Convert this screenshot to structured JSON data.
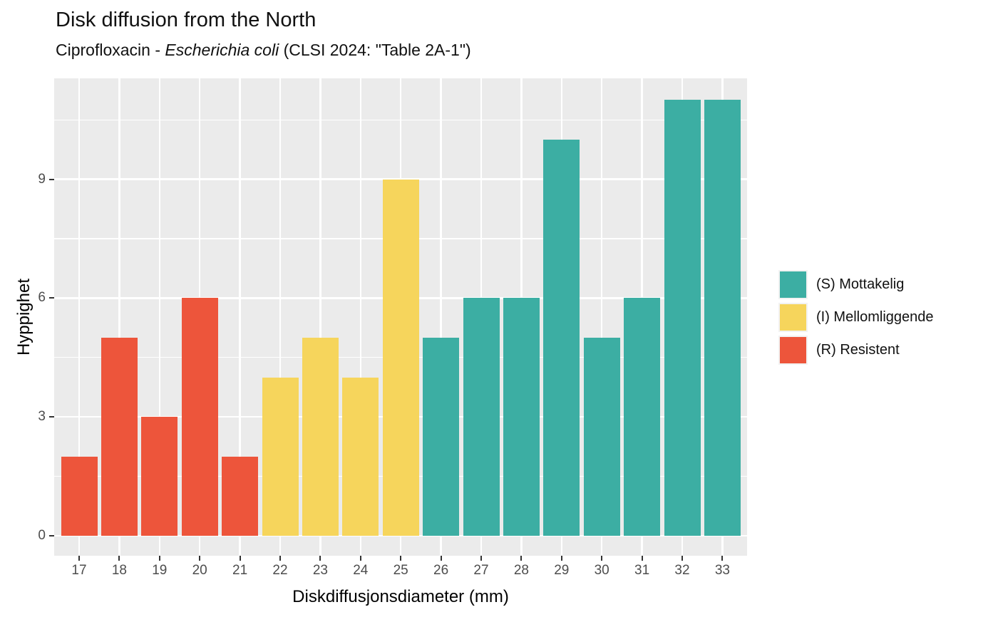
{
  "title": "Disk diffusion from the North",
  "subtitle": {
    "prefix": "Ciprofloxacin - ",
    "italic": "Escherichia coli",
    "suffix": " (CLSI 2024: \"Table 2A-1\")"
  },
  "chart_data": {
    "type": "bar",
    "title": "Disk diffusion from the North",
    "subtitle": "Ciprofloxacin - Escherichia coli (CLSI 2024: \"Table 2A-1\")",
    "xlabel": "Diskdiffusjonsdiameter (mm)",
    "ylabel": "Hyppighet",
    "categories": [
      17,
      18,
      19,
      20,
      21,
      22,
      23,
      24,
      25,
      26,
      27,
      28,
      29,
      30,
      31,
      32,
      33
    ],
    "values": [
      2,
      5,
      3,
      6,
      2,
      4,
      5,
      4,
      9,
      5,
      6,
      6,
      10,
      5,
      6,
      11,
      11
    ],
    "interpretation": [
      "R",
      "R",
      "R",
      "R",
      "R",
      "I",
      "I",
      "I",
      "I",
      "S",
      "S",
      "S",
      "S",
      "S",
      "S",
      "S",
      "S"
    ],
    "colors": {
      "S": "#3CAEA3",
      "I": "#F6D55C",
      "R": "#ED553B"
    },
    "y_ticks": [
      0,
      3,
      6,
      9
    ],
    "y_minor_ticks": [
      1.5,
      4.5,
      7.5,
      10.5
    ],
    "ylim": [
      -0.55,
      11.55
    ],
    "grid": "on",
    "panel_bg": "#EBEBEB",
    "grid_color": "#FFFFFF",
    "legend_position": "right",
    "legend": [
      {
        "class": "S",
        "label": "(S) Mottakelig",
        "color": "#3CAEA3"
      },
      {
        "class": "I",
        "label": "(I) Mellomliggende",
        "color": "#F6D55C"
      },
      {
        "class": "R",
        "label": "(R) Resistent",
        "color": "#ED553B"
      }
    ]
  }
}
